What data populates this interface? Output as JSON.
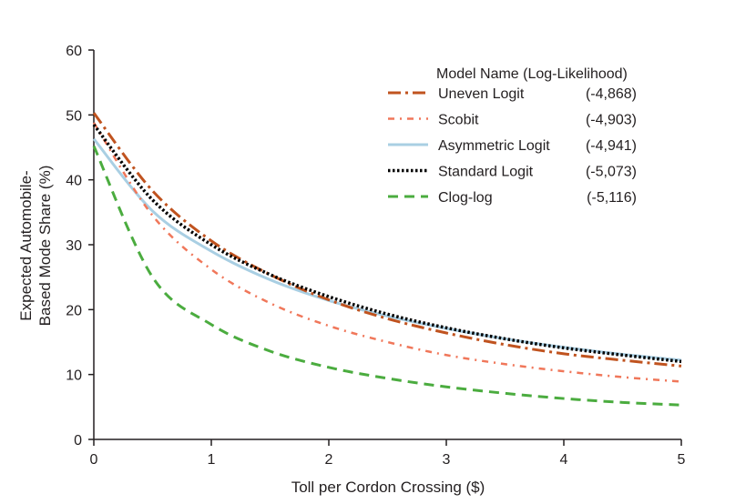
{
  "chart_data": {
    "type": "line",
    "title": "",
    "xlabel": "Toll per Cordon Crossing ($)",
    "ylabel": [
      "Expected Automobile-",
      "Based Mode Share (%)"
    ],
    "xlim": [
      0,
      5
    ],
    "ylim": [
      0,
      60
    ],
    "xticks": [
      "0",
      "1",
      "2",
      "3",
      "4",
      "5"
    ],
    "yticks": [
      "0",
      "10",
      "20",
      "30",
      "40",
      "50",
      "60"
    ],
    "grid": false,
    "legend_position": "top-right",
    "legend_title": "Model Name (Log-Likelihood)",
    "x": [
      0,
      0.5,
      1,
      1.5,
      2,
      2.5,
      3,
      3.5,
      4,
      4.5,
      5
    ],
    "series": [
      {
        "name": "Uneven Logit",
        "loglik": "(-4,868)",
        "color": "#c0531f",
        "dash": "dashdot",
        "values": [
          50.3,
          38.3,
          30.6,
          25.4,
          21.5,
          18.6,
          16.4,
          14.6,
          13.2,
          12.2,
          11.3
        ]
      },
      {
        "name": "Scobit",
        "loglik": "(-4,903)",
        "color": "#f0775a",
        "dash": "dashdot-fine",
        "values": [
          48.8,
          34.5,
          26.2,
          21.0,
          17.5,
          15.0,
          13.0,
          11.6,
          10.5,
          9.6,
          8.9
        ]
      },
      {
        "name": "Asymmetric Logit",
        "loglik": "(-4,941)",
        "color": "#a9cfe3",
        "dash": "solid",
        "values": [
          46.3,
          35.2,
          29.0,
          24.6,
          21.4,
          19.0,
          17.1,
          15.5,
          14.2,
          13.1,
          12.2
        ]
      },
      {
        "name": "Standard Logit",
        "loglik": "(-5,073)",
        "color": "#000000",
        "dash": "dotted",
        "values": [
          48.5,
          36.9,
          30.0,
          25.4,
          22.0,
          19.3,
          17.2,
          15.5,
          14.1,
          13.0,
          12.0
        ]
      },
      {
        "name": "Clog-log",
        "loglik": "(-5,116)",
        "color": "#4bac3f",
        "dash": "dashed",
        "values": [
          45.2,
          25.0,
          17.7,
          13.6,
          11.1,
          9.4,
          8.1,
          7.1,
          6.3,
          5.7,
          5.3
        ]
      }
    ]
  }
}
